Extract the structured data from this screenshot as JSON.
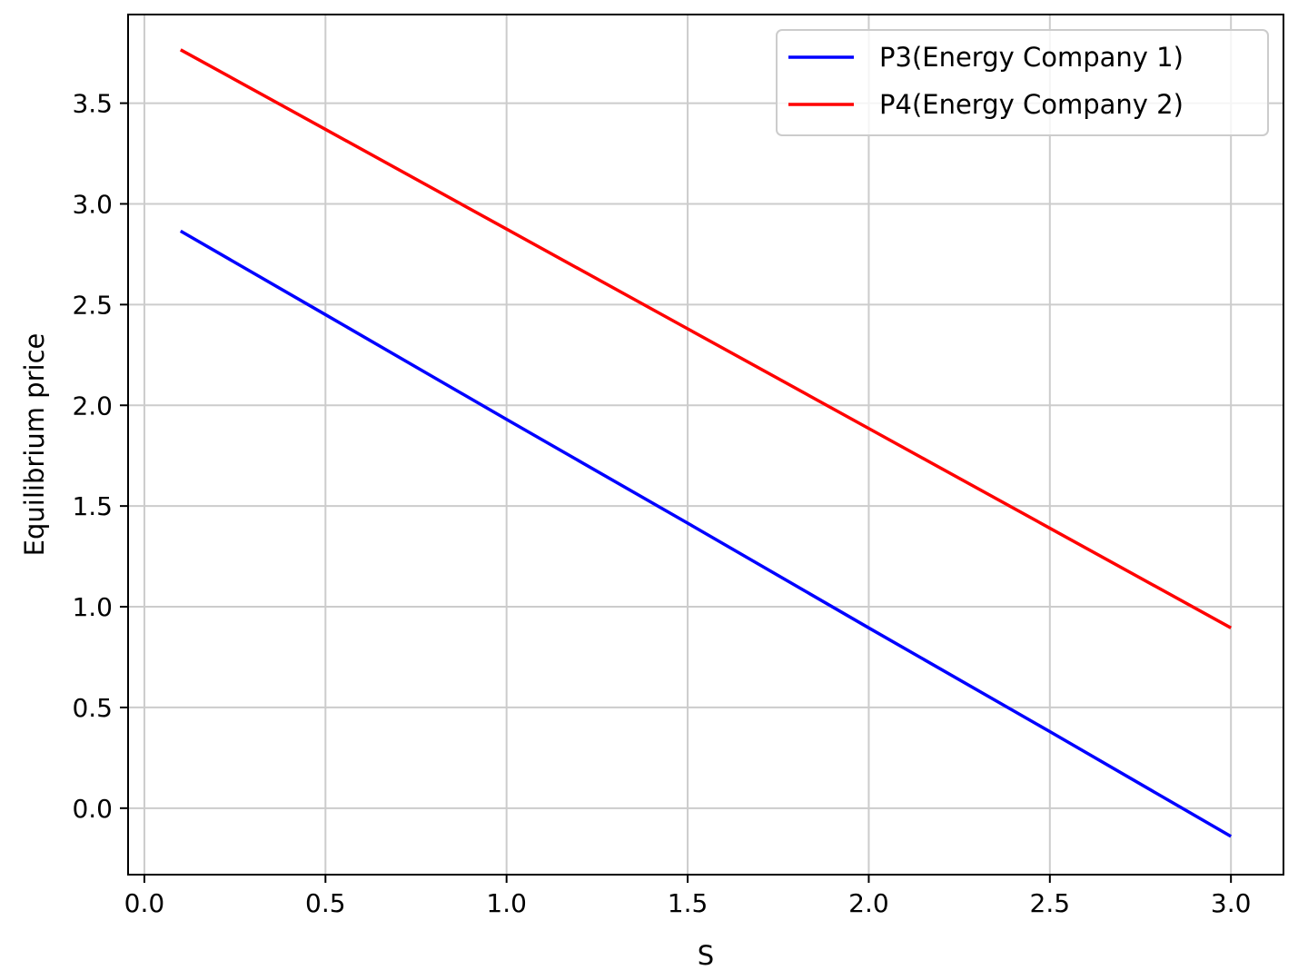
{
  "chart_data": {
    "type": "line",
    "title": "",
    "xlabel": "S",
    "ylabel": "Equilibrium price",
    "xlim": [
      -0.045,
      3.145
    ],
    "ylim": [
      -0.33,
      3.94
    ],
    "xticks": [
      0.0,
      0.5,
      1.0,
      1.5,
      2.0,
      2.5,
      3.0
    ],
    "xtick_labels": [
      "0.0",
      "0.5",
      "1.0",
      "1.5",
      "2.0",
      "2.5",
      "3.0"
    ],
    "yticks": [
      0.0,
      0.5,
      1.0,
      1.5,
      2.0,
      2.5,
      3.0,
      3.5
    ],
    "ytick_labels": [
      "0.0",
      "0.5",
      "1.0",
      "1.5",
      "2.0",
      "2.5",
      "3.0",
      "3.5"
    ],
    "grid": true,
    "legend_position": "top-right",
    "series": [
      {
        "name": "P3(Energy Company 1)",
        "color": "#0000ff",
        "x": [
          0.1,
          0.5,
          1.0,
          1.5,
          2.0,
          2.5,
          3.0
        ],
        "y": [
          2.865,
          2.45,
          1.93,
          1.415,
          0.895,
          0.38,
          -0.14
        ]
      },
      {
        "name": "P4(Energy Company 2)",
        "color": "#ff0000",
        "x": [
          0.1,
          0.5,
          1.0,
          1.5,
          2.0,
          2.5,
          3.0
        ],
        "y": [
          3.765,
          3.37,
          2.875,
          2.38,
          1.885,
          1.39,
          0.895
        ]
      }
    ]
  }
}
